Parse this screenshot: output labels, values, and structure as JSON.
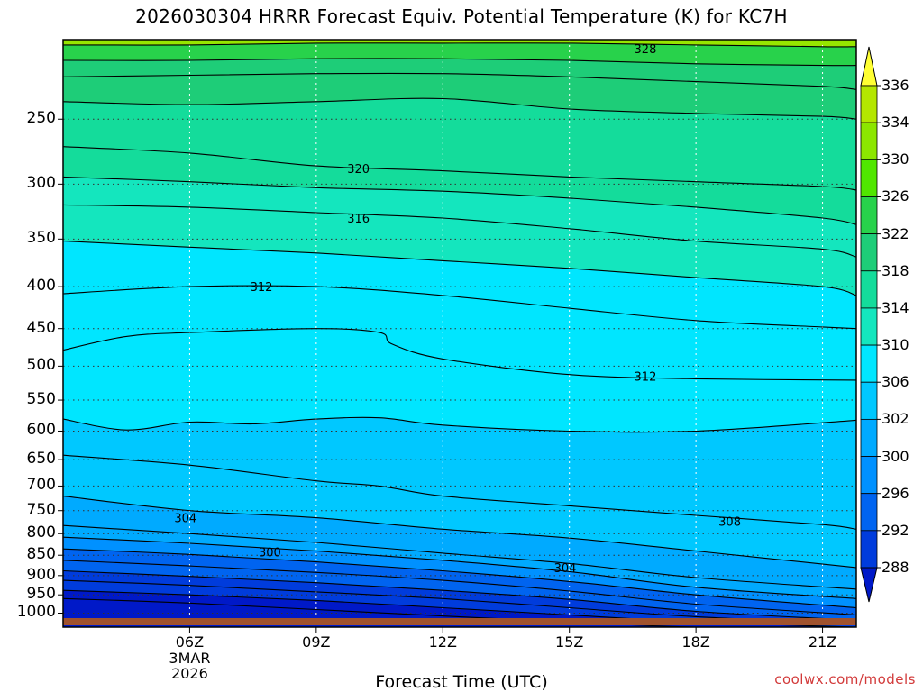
{
  "chart_data": {
    "type": "contour",
    "title": "2026030304 HRRR Forecast Equiv. Potential Temperature (K) for KC7H",
    "xlabel": "Forecast Time (UTC)",
    "ylabel": "",
    "x_ticks": [
      "06Z",
      "09Z",
      "12Z",
      "15Z",
      "18Z",
      "21Z"
    ],
    "x_date_lines": [
      "3MAR",
      "2026"
    ],
    "x_range_hours": [
      3,
      21.8
    ],
    "y_ticks": [
      250,
      300,
      350,
      400,
      450,
      500,
      550,
      600,
      650,
      700,
      750,
      800,
      850,
      900,
      950,
      1000
    ],
    "y_range_hPa": [
      1040,
      200
    ],
    "grid": true,
    "colorbar": {
      "labels": [
        336,
        334,
        330,
        326,
        322,
        318,
        314,
        310,
        306,
        302,
        300,
        296,
        292,
        288
      ],
      "colors": [
        "#b4e600",
        "#8ce600",
        "#50e600",
        "#28d24b",
        "#1ecd78",
        "#14dc9b",
        "#14e6be",
        "#00e6ff",
        "#00c8ff",
        "#00aaff",
        "#0091ff",
        "#0064f0",
        "#003cdc",
        "#0019c8"
      ]
    },
    "contour_labels": [
      {
        "value": "328",
        "x_hour": 16.8,
        "p": 205
      },
      {
        "value": "320",
        "x_hour": 10.0,
        "p": 287
      },
      {
        "value": "316",
        "x_hour": 10.0,
        "p": 330
      },
      {
        "value": "312",
        "x_hour": 7.7,
        "p": 400
      },
      {
        "value": "312",
        "x_hour": 16.8,
        "p": 514
      },
      {
        "value": "308",
        "x_hour": 18.8,
        "p": 773
      },
      {
        "value": "304",
        "x_hour": 5.9,
        "p": 765
      },
      {
        "value": "300",
        "x_hour": 7.9,
        "p": 842
      },
      {
        "value": "304",
        "x_hour": 14.9,
        "p": 880
      }
    ],
    "series": [
      {
        "value": 328,
        "x": [
          3,
          6,
          9,
          12,
          15,
          18,
          21,
          21.8
        ],
        "y": [
          203,
          203,
          202,
          202,
          202,
          203,
          204,
          204
        ]
      },
      {
        "value": 326,
        "x": [
          3,
          6,
          9,
          12,
          15,
          18,
          21,
          21.8
        ],
        "y": [
          212,
          212,
          211,
          211,
          212,
          214,
          215,
          215
        ]
      },
      {
        "value": 324,
        "x": [
          3,
          6,
          9,
          12,
          15,
          18,
          21,
          21.8
        ],
        "y": [
          222,
          221,
          220,
          220,
          222,
          225,
          228,
          230
        ]
      },
      {
        "value": 322,
        "x": [
          3,
          6,
          9,
          12,
          15,
          18,
          21,
          21.8
        ],
        "y": [
          238,
          240,
          238,
          236,
          243,
          246,
          248,
          250
        ]
      },
      {
        "value": 320,
        "x": [
          3,
          6,
          9,
          12,
          15,
          18,
          21,
          21.8
        ],
        "y": [
          270,
          275,
          285,
          289,
          294,
          298,
          302,
          305
        ]
      },
      {
        "value": 318,
        "x": [
          3,
          6,
          9,
          12,
          15,
          18,
          21,
          21.8
        ],
        "y": [
          294,
          298,
          303,
          306,
          312,
          320,
          330,
          336
        ]
      },
      {
        "value": 316,
        "x": [
          3,
          6,
          9,
          12,
          15,
          18,
          21,
          21.8
        ],
        "y": [
          318,
          320,
          325,
          330,
          340,
          352,
          360,
          368
        ]
      },
      {
        "value": 314,
        "x": [
          3,
          6,
          9,
          12,
          15,
          18,
          21,
          21.8
        ],
        "y": [
          352,
          358,
          364,
          372,
          380,
          390,
          400,
          410
        ]
      },
      {
        "value": 312,
        "x": [
          3,
          6,
          9,
          12,
          15,
          18,
          21,
          21.8
        ],
        "y": [
          408,
          400,
          400,
          410,
          425,
          440,
          448,
          450
        ]
      },
      {
        "value": 312,
        "x": [
          3,
          4.5,
          6,
          9,
          10.5,
          10.8,
          12,
          15,
          18,
          21.8
        ],
        "y": [
          478,
          460,
          455,
          450,
          455,
          470,
          490,
          512,
          518,
          520
        ]
      },
      {
        "value": 310,
        "x": [
          3,
          4.5,
          6,
          7.5,
          9,
          10.5,
          12,
          15,
          18,
          21.8
        ],
        "y": [
          580,
          598,
          585,
          588,
          580,
          578,
          590,
          600,
          600,
          582
        ]
      },
      {
        "value": 308,
        "x": [
          3,
          6,
          9,
          10.5,
          12,
          15,
          18,
          21,
          21.8
        ],
        "y": [
          642,
          660,
          690,
          700,
          720,
          740,
          760,
          780,
          790
        ]
      },
      {
        "value": 306,
        "x": [
          3,
          6,
          9,
          12,
          15,
          18,
          21.8
        ],
        "y": [
          720,
          750,
          765,
          790,
          810,
          840,
          880
        ]
      },
      {
        "value": 304,
        "x": [
          3,
          6,
          9,
          12,
          15,
          18,
          21.8
        ],
        "y": [
          782,
          800,
          820,
          845,
          870,
          905,
          935
        ]
      },
      {
        "value": 302,
        "x": [
          3,
          6,
          9,
          12,
          15,
          18,
          21.8
        ],
        "y": [
          808,
          822,
          840,
          862,
          890,
          930,
          960
        ]
      },
      {
        "value": 300,
        "x": [
          3,
          6,
          9,
          12,
          15,
          18,
          21.8
        ],
        "y": [
          835,
          848,
          866,
          888,
          915,
          950,
          985
        ]
      },
      {
        "value": 298,
        "x": [
          3,
          6,
          9,
          12,
          15,
          18,
          21.8
        ],
        "y": [
          862,
          876,
          892,
          912,
          940,
          975,
          1005
        ]
      },
      {
        "value": 296,
        "x": [
          3,
          6,
          9,
          12,
          15,
          18,
          21.8
        ],
        "y": [
          888,
          902,
          918,
          938,
          962,
          995,
          1020
        ]
      },
      {
        "value": 294,
        "x": [
          3,
          6,
          9,
          12,
          15,
          18,
          21.8
        ],
        "y": [
          912,
          925,
          942,
          960,
          985,
          1010,
          1030
        ]
      },
      {
        "value": 292,
        "x": [
          3,
          6,
          9,
          12,
          15,
          18,
          21.8
        ],
        "y": [
          938,
          950,
          965,
          985,
          1005,
          1025,
          1040
        ]
      },
      {
        "value": 290,
        "x": [
          3,
          6,
          9,
          12,
          15,
          18,
          21.8
        ],
        "y": [
          960,
          972,
          990,
          1008,
          1025,
          1040,
          1040
        ]
      }
    ]
  }
}
